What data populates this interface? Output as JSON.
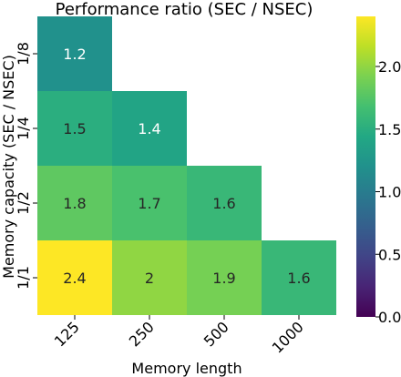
{
  "chart_data": {
    "type": "heatmap",
    "title": "Performance ratio (SEC / NSEC)",
    "xlabel": "Memory length",
    "ylabel": "Memory capacity (SEC / NSEC)",
    "x_categories": [
      "125",
      "250",
      "500",
      "1000"
    ],
    "y_categories": [
      "1/8",
      "1/4",
      "1/2",
      "1/1"
    ],
    "values": [
      [
        1.2,
        null,
        null,
        null
      ],
      [
        1.5,
        1.4,
        null,
        null
      ],
      [
        1.8,
        1.7,
        1.6,
        null
      ],
      [
        2.4,
        2,
        1.9,
        1.6
      ]
    ],
    "value_labels": [
      [
        "1.2",
        "",
        "",
        ""
      ],
      [
        "1.5",
        "1.4",
        "",
        ""
      ],
      [
        "1.8",
        "1.7",
        "1.6",
        ""
      ],
      [
        "2.4",
        "2",
        "1.9",
        "1.6"
      ]
    ],
    "colorbar": {
      "min": 0.0,
      "max": 2.4,
      "ticks": [
        0.0,
        0.5,
        1.0,
        1.5,
        2.0
      ],
      "tick_labels": [
        "0.0",
        "0.5",
        "1.0",
        "1.5",
        "2.0"
      ],
      "colormap": "viridis"
    },
    "grid": false
  }
}
